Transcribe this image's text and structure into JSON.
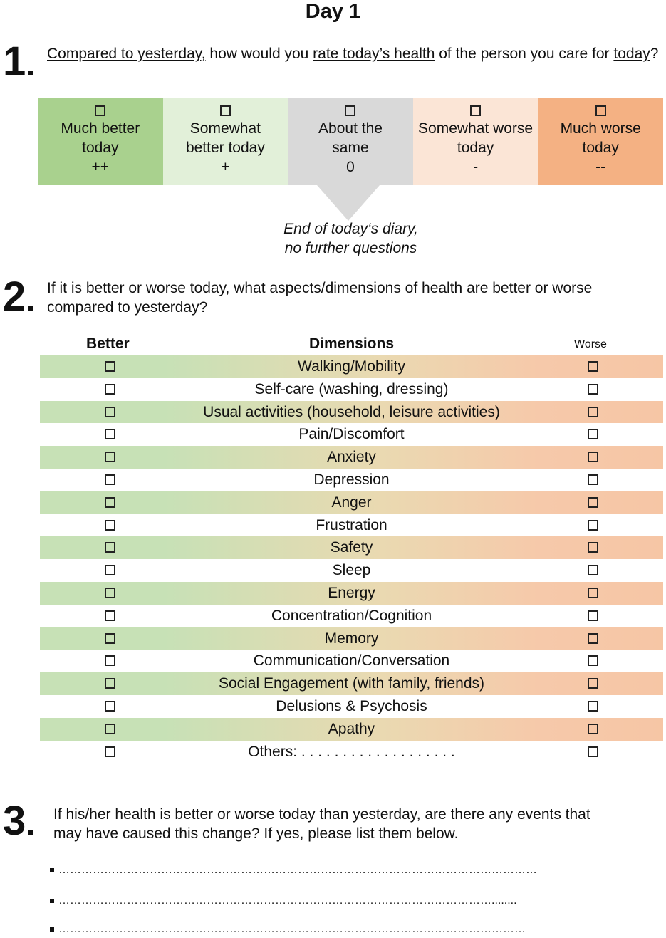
{
  "title": "Day 1",
  "q1": {
    "number": "1",
    "text_parts": [
      {
        "t": "Compared to yesterday,",
        "u": true
      },
      {
        "t": " how would you ",
        "u": false
      },
      {
        "t": "rate today’s health",
        "u": true
      },
      {
        "t": " of the person you care for ",
        "u": false
      },
      {
        "t": "today",
        "u": true
      },
      {
        "t": "?",
        "u": false
      }
    ],
    "options": [
      {
        "line1": "Much better",
        "line2": "today",
        "score": "++",
        "color": "#a9d18e"
      },
      {
        "line1": "Somewhat",
        "line2": "better today",
        "score": "+",
        "color": "#e2f0d9"
      },
      {
        "line1": "About the",
        "line2": "same",
        "score": "0",
        "color": "#d9d9d9"
      },
      {
        "line1": "Somewhat worse",
        "line2": "today",
        "score": "-",
        "color": "#fbe5d6"
      },
      {
        "line1": "Much worse",
        "line2": "today",
        "score": "--",
        "color": "#f4b183"
      }
    ],
    "end_line1": "End of today‘s diary,",
    "end_line2": "no further questions"
  },
  "q2": {
    "number": "2",
    "text_line1": "If it is better or worse today, what aspects/dimensions of health are better or worse",
    "text_line2": "compared to yesterday?",
    "header_better": "Better",
    "header_dimensions": "Dimensions",
    "header_worse": "Worse",
    "dimensions": [
      "Walking/Mobility",
      "Self-care (washing, dressing)",
      "Usual activities (household, leisure activities)",
      "Pain/Discomfort",
      "Anxiety",
      "Depression",
      "Anger",
      "Frustration",
      "Safety",
      "Sleep",
      "Energy",
      "Concentration/Cognition",
      "Memory",
      "Communication/Conversation",
      "Social Engagement (with family, friends)",
      "Delusions & Psychosis",
      "Apathy",
      "Others: . . . . . . . . . . . . . . . . . . ."
    ]
  },
  "q3": {
    "number": "3",
    "text_line1": "If his/her health is better or worse today than yesterday, are there any events that",
    "text_line2": "may have caused this change? If yes, please list them below.",
    "lines": [
      "………………………………………………………………………………………………………………",
      "……………………………………………………………………………………………………........",
      "……………………………………………………………………………………………………………"
    ]
  }
}
